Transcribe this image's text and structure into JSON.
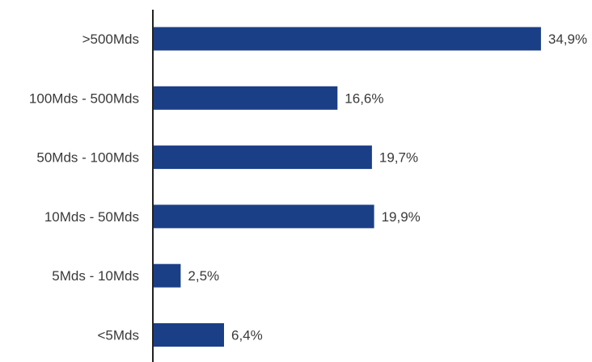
{
  "chart_data": {
    "type": "bar",
    "orientation": "horizontal",
    "categories": [
      ">500Mds",
      "100Mds - 500Mds",
      "50Mds - 100Mds",
      "10Mds - 50Mds",
      "5Mds - 10Mds",
      "<5Mds"
    ],
    "values": [
      34.9,
      16.6,
      19.7,
      19.9,
      2.5,
      6.4
    ],
    "value_labels": [
      "34,9%",
      "16,6%",
      "19,7%",
      "19,9%",
      "2,5%",
      "6,4%"
    ],
    "title": "",
    "xlabel": "",
    "ylabel": "",
    "xlim": [
      0,
      35
    ],
    "grid": false,
    "legend": "none",
    "bar_color": "#1b3f86",
    "axis_color": "#222222",
    "text_color": "#3a3a3a"
  }
}
